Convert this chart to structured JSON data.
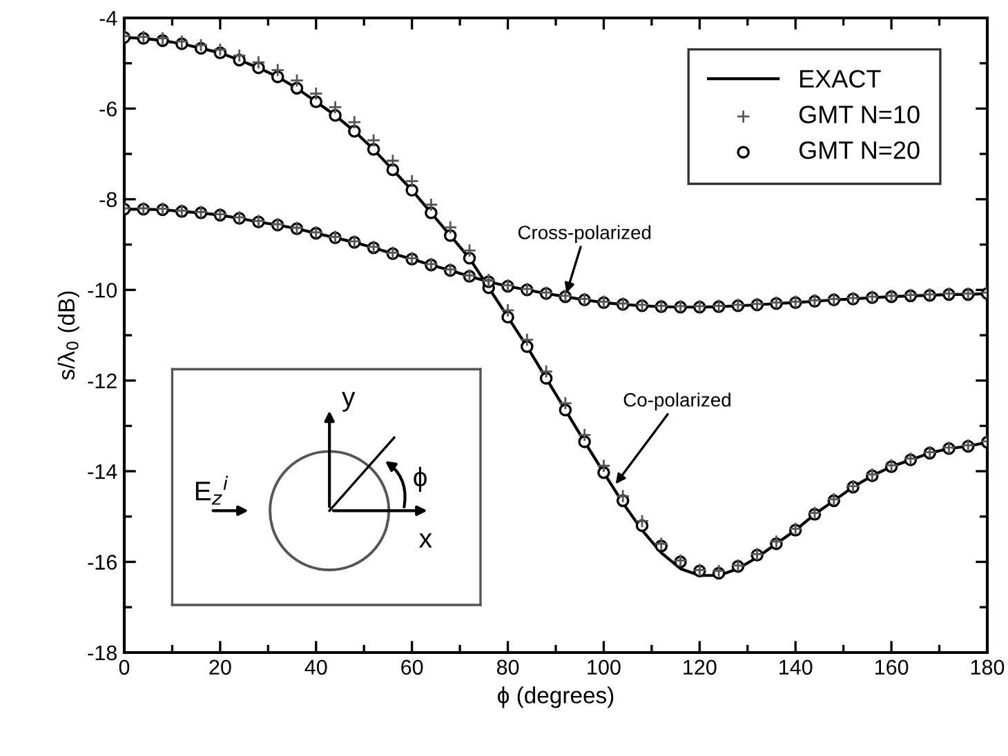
{
  "chart_data": {
    "type": "line",
    "xlabel": "ϕ (degrees)",
    "ylabel": "s/λ$_{0}$ (dB)",
    "xlim": [
      0,
      180
    ],
    "ylim": [
      -18,
      -4
    ],
    "xticks": [
      0,
      20,
      40,
      60,
      80,
      100,
      120,
      140,
      160,
      180
    ],
    "yticks": [
      -18,
      -16,
      -14,
      -12,
      -10,
      -8,
      -6,
      -4
    ],
    "grid": false,
    "legend": "top right",
    "x": [
      0,
      4,
      8,
      12,
      16,
      20,
      24,
      28,
      32,
      36,
      40,
      44,
      48,
      52,
      56,
      60,
      64,
      68,
      72,
      76,
      80,
      84,
      88,
      92,
      96,
      100,
      104,
      108,
      112,
      116,
      120,
      124,
      128,
      132,
      136,
      140,
      144,
      148,
      152,
      156,
      160,
      164,
      168,
      172,
      176,
      180
    ],
    "series": [
      {
        "name": "EXACT",
        "marker": "none",
        "line_style": "solid",
        "color": "#000000",
        "values": [
          -4.43,
          -4.45,
          -4.5,
          -4.57,
          -4.67,
          -4.77,
          -4.93,
          -5.1,
          -5.3,
          -5.55,
          -5.85,
          -6.15,
          -6.5,
          -6.9,
          -7.35,
          -7.8,
          -8.3,
          -8.8,
          -9.3,
          -9.95,
          -10.6,
          -11.25,
          -11.95,
          -12.65,
          -13.35,
          -14.03,
          -14.7,
          -15.3,
          -15.8,
          -16.15,
          -16.3,
          -16.3,
          -16.15,
          -15.9,
          -15.6,
          -15.3,
          -14.95,
          -14.65,
          -14.35,
          -14.1,
          -13.9,
          -13.75,
          -13.6,
          -13.5,
          -13.45,
          -13.36
        ]
      },
      {
        "marker": "none",
        "line_style": "solid",
        "color": "#000000",
        "values": [
          -8.22,
          -8.22,
          -8.23,
          -8.27,
          -8.3,
          -8.35,
          -8.42,
          -8.5,
          -8.57,
          -8.65,
          -8.75,
          -8.85,
          -8.95,
          -9.07,
          -9.2,
          -9.32,
          -9.45,
          -9.57,
          -9.7,
          -9.82,
          -9.92,
          -10.0,
          -10.08,
          -10.15,
          -10.22,
          -10.28,
          -10.32,
          -10.35,
          -10.37,
          -10.38,
          -10.38,
          -10.37,
          -10.35,
          -10.33,
          -10.3,
          -10.28,
          -10.25,
          -10.22,
          -10.2,
          -10.17,
          -10.15,
          -10.13,
          -10.12,
          -10.1,
          -10.1,
          -10.08
        ]
      },
      {
        "name": "GMT N=10",
        "type": "scatter",
        "marker": "cross",
        "color": "#555555",
        "values": [
          -4.4,
          -4.42,
          -4.45,
          -4.52,
          -4.6,
          -4.7,
          -4.83,
          -4.98,
          -5.15,
          -5.38,
          -5.67,
          -5.97,
          -6.3,
          -6.7,
          -7.15,
          -7.6,
          -8.12,
          -8.62,
          -9.13,
          -9.78,
          -10.45,
          -11.1,
          -11.8,
          -12.5,
          -13.2,
          -13.88,
          -14.55,
          -15.1,
          -15.6,
          -15.97,
          -16.18,
          -16.2,
          -16.08,
          -15.83,
          -15.55,
          -15.27,
          -14.92,
          -14.62,
          -14.33,
          -14.07,
          -13.87,
          -13.72,
          -13.58,
          -13.48,
          -13.43,
          -13.34
        ]
      },
      {
        "type": "scatter",
        "marker": "cross",
        "color": "#555555",
        "values": [
          -8.2,
          -8.2,
          -8.21,
          -8.25,
          -8.28,
          -8.33,
          -8.4,
          -8.48,
          -8.55,
          -8.63,
          -8.73,
          -8.83,
          -8.93,
          -9.05,
          -9.18,
          -9.3,
          -9.43,
          -9.55,
          -9.68,
          -9.8,
          -9.9,
          -9.98,
          -10.06,
          -10.13,
          -10.2,
          -10.26,
          -10.3,
          -10.33,
          -10.35,
          -10.36,
          -10.36,
          -10.35,
          -10.33,
          -10.31,
          -10.28,
          -10.26,
          -10.23,
          -10.2,
          -10.18,
          -10.15,
          -10.13,
          -10.11,
          -10.1,
          -10.08,
          -10.08,
          -10.06
        ]
      },
      {
        "name": "GMT N=20",
        "type": "scatter",
        "marker": "circle",
        "color": "#000000",
        "values": [
          -4.43,
          -4.45,
          -4.5,
          -4.57,
          -4.67,
          -4.77,
          -4.93,
          -5.1,
          -5.3,
          -5.55,
          -5.85,
          -6.15,
          -6.5,
          -6.9,
          -7.35,
          -7.8,
          -8.3,
          -8.8,
          -9.3,
          -9.95,
          -10.6,
          -11.25,
          -11.95,
          -12.65,
          -13.35,
          -14.03,
          -14.65,
          -15.2,
          -15.65,
          -16.0,
          -16.2,
          -16.25,
          -16.1,
          -15.85,
          -15.6,
          -15.3,
          -14.95,
          -14.65,
          -14.35,
          -14.1,
          -13.9,
          -13.75,
          -13.6,
          -13.5,
          -13.45,
          -13.36
        ]
      },
      {
        "type": "scatter",
        "marker": "circle",
        "color": "#000000",
        "values": [
          -8.22,
          -8.22,
          -8.23,
          -8.27,
          -8.3,
          -8.35,
          -8.42,
          -8.5,
          -8.57,
          -8.65,
          -8.75,
          -8.85,
          -8.95,
          -9.07,
          -9.2,
          -9.32,
          -9.45,
          -9.57,
          -9.7,
          -9.82,
          -9.92,
          -10.0,
          -10.08,
          -10.15,
          -10.22,
          -10.28,
          -10.32,
          -10.35,
          -10.37,
          -10.38,
          -10.38,
          -10.37,
          -10.35,
          -10.33,
          -10.3,
          -10.28,
          -10.25,
          -10.22,
          -10.2,
          -10.17,
          -10.15,
          -10.13,
          -10.12,
          -10.1,
          -10.1,
          -10.08
        ]
      }
    ],
    "annotations": [
      {
        "text": "Cross-polarized",
        "x": 92,
        "y": -10.15
      },
      {
        "text": "Co-polarized",
        "x": 102,
        "y": -14.35
      },
      "E$_{z}$$^{i}$",
      "y",
      "x",
      "ϕ"
    ]
  }
}
